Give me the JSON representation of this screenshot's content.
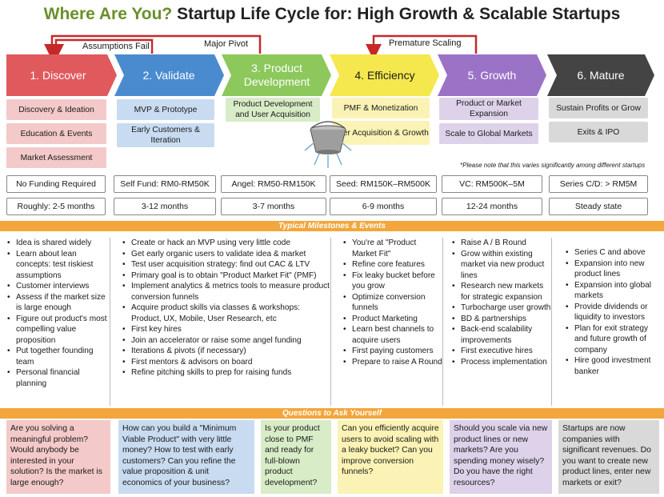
{
  "title": {
    "lead": "Where Are You?",
    "rest": "Startup Life Cycle for: High Growth & Scalable Startups"
  },
  "connectors": {
    "assumptions_fail": "Assumptions Fail",
    "major_pivot": "Major Pivot",
    "premature_scaling": "Premature Scaling"
  },
  "stages": [
    {
      "label": "1. Discover",
      "color": "#e0595c"
    },
    {
      "label": "2. Validate",
      "color": "#4a8bd0"
    },
    {
      "label": "3. Product Development",
      "color": "#8cc85c"
    },
    {
      "label": "4. Efficiency",
      "color": "#f5e84e"
    },
    {
      "label": "5. Growth",
      "color": "#9a72c6"
    },
    {
      "label": "6. Mature",
      "color": "#444444"
    }
  ],
  "activities": {
    "discover": [
      "Discovery & Ideation",
      "Education & Events",
      "Market Assessment"
    ],
    "validate": [
      "MVP & Prototype",
      "Early Customers & Iteration"
    ],
    "product_development": [
      "Product Development and User Acquisition"
    ],
    "efficiency": [
      "PMF & Monetization",
      "User Acquisition & Growth"
    ],
    "growth": [
      "Product or Market Expansion",
      "Scale to Global Markets"
    ],
    "mature": [
      "Sustain Profits or Grow",
      "Exits & IPO"
    ]
  },
  "note": "*Please note that this varies significantly among different startups",
  "funding": [
    "No Funding Required",
    "Self Fund: RM0-RM50K",
    "Angel: RM50-RM150K",
    "Seed: RM150K–RM500K",
    "VC: RM500K–5M",
    "Series C/D: > RM5M"
  ],
  "durations": [
    "Roughly: 2-5 months",
    "3-12 months",
    "3-7 months",
    "6-9 months",
    "12-24 months",
    "Steady state"
  ],
  "milestones_header": "Typical Milestones & Events",
  "milestones": [
    [
      "Idea is shared widely",
      "Learn about lean concepts: test riskiest assumptions",
      "Customer interviews",
      "Assess if the market size is large enough",
      "Figure out product's most compelling value proposition",
      "Put together founding team",
      "Personal financial planning"
    ],
    [
      "Create or hack an MVP using very little code",
      "Get early organic users to validate idea & market",
      "Test user acquisition strategy: find out CAC & LTV",
      "Primary goal is to obtain \"Product Market Fit\" (PMF)",
      "Implement analytics & metrics tools to measure product conversion funnels",
      "Acquire product skills via classes & workshops: Product, UX, Mobile, User Research, etc",
      "First key hires",
      "Join an accelerator or raise some angel funding",
      "Iterations & pivots (if necessary)",
      "First mentors & advisors on board",
      "Refine pitching skills to prep for raising funds"
    ],
    [
      "You're at \"Product Market Fit\"",
      "Refine core features",
      "Fix leaky bucket before you grow",
      "Optimize conversion funnels",
      "Product Marketing",
      "Learn best channels to acquire users",
      "First paying customers",
      "Prepare to raise A Round"
    ],
    [
      "Raise A / B Round",
      "Grow within existing market via new product lines",
      "Research new markets for strategic expansion",
      "Turbocharge user growth",
      "BD & partnerships",
      "Back-end scalability improvements",
      "First executive hires",
      "Process implementation"
    ],
    [
      "Series C and above",
      "Expansion into new product lines",
      "Expansion into global markets",
      "Provide dividends or liquidity to investors",
      "Plan for exit strategy and future growth of company",
      "Hire good investment banker"
    ]
  ],
  "questions_header": "Questions to Ask Yourself",
  "questions": [
    "Are you solving a meaningful problem? Would anybody be interested in your solution? Is the market is large enough?",
    "How can you build a \"Minimum Viable Product\" with very little money? How to test with early customers? Can you refine the value proposition & unit economics of your business?",
    "Is your product close to PMF and ready for full-blown product development?",
    "Can you efficiently acquire users to avoid scaling with a leaky bucket? Can you improve conversion funnels?",
    "Should you scale via new product lines or new markets? Are you spending money wisely? Do you have the right resources?",
    "Startups are now companies with significant revenues. Do you want to create new product lines, enter new markets or exit?"
  ],
  "icons": {
    "bucket": "leaky-bucket-icon"
  }
}
